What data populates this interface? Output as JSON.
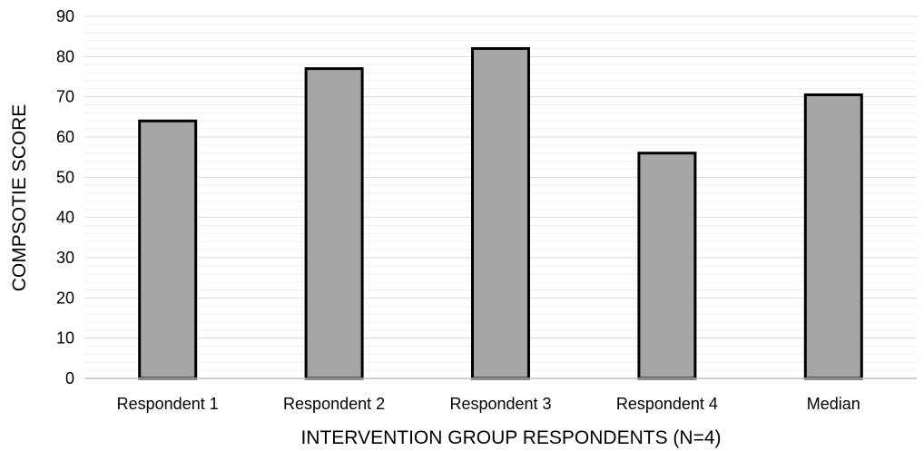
{
  "chart_data": {
    "type": "bar",
    "categories": [
      "Respondent 1",
      "Respondent 2",
      "Respondent 3",
      "Respondent 4",
      "Median"
    ],
    "values": [
      64,
      77,
      82,
      56,
      70.5
    ],
    "title": "",
    "xlabel": "INTERVENTION GROUP RESPONDENTS (N=4)",
    "ylabel": "COMPSOTIE SCORE",
    "ylim": [
      0,
      90
    ],
    "yticks": [
      0,
      10,
      20,
      30,
      40,
      50,
      60,
      70,
      80,
      90
    ],
    "grid": true,
    "legend": "none",
    "bar_color": "#a6a6a6",
    "bar_edge_color": "#000000"
  }
}
